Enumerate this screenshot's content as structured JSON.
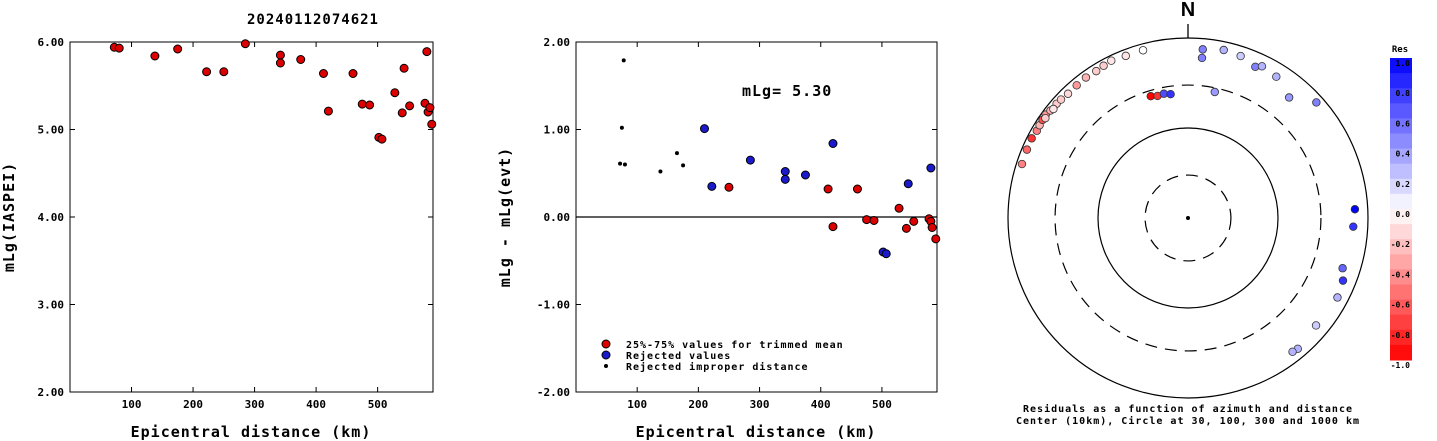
{
  "title": "20240112074621",
  "chart_data": [
    {
      "type": "scatter",
      "xlabel": "Epicentral distance (km)",
      "ylabel": "mLg(IASPEI)",
      "xlim": [
        0,
        590
      ],
      "ylim": [
        2.0,
        6.0
      ],
      "xticks": [
        "100",
        "200",
        "300",
        "400",
        "500"
      ],
      "yticks": [
        "2.00",
        "3.00",
        "4.00",
        "5.00",
        "6.00"
      ],
      "points": [
        {
          "x": 72,
          "y": 5.94
        },
        {
          "x": 80,
          "y": 5.93
        },
        {
          "x": 138,
          "y": 5.84
        },
        {
          "x": 175,
          "y": 5.92
        },
        {
          "x": 222,
          "y": 5.66
        },
        {
          "x": 250,
          "y": 5.66
        },
        {
          "x": 285,
          "y": 5.98
        },
        {
          "x": 342,
          "y": 5.85
        },
        {
          "x": 342,
          "y": 5.76
        },
        {
          "x": 375,
          "y": 5.8
        },
        {
          "x": 412,
          "y": 5.64
        },
        {
          "x": 420,
          "y": 5.21
        },
        {
          "x": 460,
          "y": 5.64
        },
        {
          "x": 475,
          "y": 5.29
        },
        {
          "x": 487,
          "y": 5.28
        },
        {
          "x": 502,
          "y": 4.91
        },
        {
          "x": 507,
          "y": 4.89
        },
        {
          "x": 528,
          "y": 5.42
        },
        {
          "x": 540,
          "y": 5.19
        },
        {
          "x": 543,
          "y": 5.7
        },
        {
          "x": 552,
          "y": 5.27
        },
        {
          "x": 577,
          "y": 5.3
        },
        {
          "x": 580,
          "y": 5.89
        },
        {
          "x": 582,
          "y": 5.2
        },
        {
          "x": 585,
          "y": 5.25
        },
        {
          "x": 588,
          "y": 5.06
        }
      ]
    },
    {
      "type": "scatter",
      "xlabel": "Epicentral distance (km)",
      "ylabel": "mLg - mLg(evt)",
      "xlim": [
        0,
        590
      ],
      "ylim": [
        -2.0,
        2.0
      ],
      "xticks": [
        "100",
        "200",
        "300",
        "400",
        "500"
      ],
      "yticks": [
        "-2.00",
        "-1.00",
        "0.00",
        "1.00",
        "2.00"
      ],
      "annotation": "mLg= 5.30",
      "legend": {
        "placement": "bottom-left",
        "entries": [
          {
            "label": "25%-75% values for trimmed mean",
            "color": "#dd0000",
            "marker": "circle"
          },
          {
            "label": "Rejected values",
            "color": "#1a1acc",
            "marker": "circle"
          },
          {
            "label": "Rejected improper distance",
            "color": "#000000",
            "marker": "dot"
          }
        ]
      },
      "series": [
        {
          "category": "trimmed",
          "points": [
            {
              "x": 250,
              "y": 0.34
            },
            {
              "x": 412,
              "y": 0.32
            },
            {
              "x": 420,
              "y": -0.11
            },
            {
              "x": 460,
              "y": 0.32
            },
            {
              "x": 475,
              "y": -0.03
            },
            {
              "x": 487,
              "y": -0.04
            },
            {
              "x": 528,
              "y": 0.1
            },
            {
              "x": 540,
              "y": -0.13
            },
            {
              "x": 552,
              "y": -0.05
            },
            {
              "x": 577,
              "y": -0.02
            },
            {
              "x": 580,
              "y": -0.05
            },
            {
              "x": 582,
              "y": -0.12
            },
            {
              "x": 588,
              "y": -0.25
            }
          ]
        },
        {
          "category": "rejected",
          "points": [
            {
              "x": 210,
              "y": 1.01
            },
            {
              "x": 222,
              "y": 0.35
            },
            {
              "x": 285,
              "y": 0.65
            },
            {
              "x": 342,
              "y": 0.52
            },
            {
              "x": 342,
              "y": 0.43
            },
            {
              "x": 375,
              "y": 0.48
            },
            {
              "x": 420,
              "y": 0.84
            },
            {
              "x": 502,
              "y": -0.4
            },
            {
              "x": 507,
              "y": -0.42
            },
            {
              "x": 543,
              "y": 0.38
            },
            {
              "x": 580,
              "y": 0.56
            }
          ]
        },
        {
          "category": "improper",
          "points": [
            {
              "x": 72,
              "y": 0.61
            },
            {
              "x": 75,
              "y": 1.02
            },
            {
              "x": 78,
              "y": 1.79
            },
            {
              "x": 80,
              "y": 0.6
            },
            {
              "x": 138,
              "y": 0.52
            },
            {
              "x": 165,
              "y": 0.73
            },
            {
              "x": 175,
              "y": 0.59
            }
          ]
        }
      ]
    },
    {
      "type": "polar-scatter",
      "north_label": "N",
      "caption_lines": [
        "Residuals as a function of azimuth and distance",
        "Center (10km), Circle at 30, 100, 300 and 1000 km"
      ],
      "rings_km": [
        30,
        100,
        300,
        1000
      ],
      "ring_styles": [
        "dashed",
        "solid",
        "dashed",
        "solid"
      ],
      "colorbar": {
        "title": "Res",
        "min": -1.0,
        "max": 1.0,
        "ticks": [
          "1.0",
          "0.8",
          "0.6",
          "0.4",
          "0.2",
          "0.0",
          "-0.2",
          "-0.4",
          "-0.6",
          "-0.8",
          "-1.0"
        ],
        "positive_color": "#0000ff",
        "negative_color": "#ff0000"
      },
      "stations": [
        {
          "az": 288,
          "dist": 870,
          "res": -0.5
        },
        {
          "az": 293,
          "dist": 880,
          "res": -0.6
        },
        {
          "az": 297,
          "dist": 890,
          "res": -0.8
        },
        {
          "az": 300,
          "dist": 870,
          "res": -0.5
        },
        {
          "az": 302,
          "dist": 880,
          "res": -0.3
        },
        {
          "az": 304,
          "dist": 890,
          "res": -0.7
        },
        {
          "az": 306,
          "dist": 900,
          "res": -0.4
        },
        {
          "az": 305,
          "dist": 860,
          "res": -0.2
        },
        {
          "az": 308,
          "dist": 870,
          "res": -0.3
        },
        {
          "az": 311,
          "dist": 860,
          "res": -0.2
        },
        {
          "az": 309,
          "dist": 840,
          "res": -0.1
        },
        {
          "az": 313,
          "dist": 850,
          "res": -0.2
        },
        {
          "az": 316,
          "dist": 830,
          "res": -0.15
        },
        {
          "az": 320,
          "dist": 840,
          "res": -0.4
        },
        {
          "az": 324,
          "dist": 850,
          "res": -0.3
        },
        {
          "az": 328,
          "dist": 840,
          "res": -0.2
        },
        {
          "az": 331,
          "dist": 860,
          "res": -0.2
        },
        {
          "az": 334,
          "dist": 880,
          "res": -0.1
        },
        {
          "az": 339,
          "dist": 850,
          "res": -0.1
        },
        {
          "az": 345,
          "dist": 850,
          "res": 0.0
        },
        {
          "az": 343,
          "dist": 260,
          "res": -1.0
        },
        {
          "az": 346,
          "dist": 250,
          "res": -0.8
        },
        {
          "az": 349,
          "dist": 255,
          "res": 0.7
        },
        {
          "az": 352,
          "dist": 245,
          "res": 0.8
        },
        {
          "az": 5,
          "dist": 760,
          "res": 0.5
        },
        {
          "az": 12,
          "dist": 810,
          "res": 0.3
        },
        {
          "az": 18,
          "dist": 780,
          "res": 0.2
        },
        {
          "az": 24,
          "dist": 690,
          "res": 0.5
        },
        {
          "az": 26,
          "dist": 750,
          "res": 0.3
        },
        {
          "az": 32,
          "dist": 710,
          "res": 0.3
        },
        {
          "az": 40,
          "dist": 560,
          "res": 0.4
        },
        {
          "az": 48,
          "dist": 830,
          "res": 0.5
        },
        {
          "az": 5,
          "dist": 610,
          "res": 0.5
        },
        {
          "az": 12,
          "dist": 270,
          "res": 0.4
        },
        {
          "az": 87,
          "dist": 720,
          "res": 1.0
        },
        {
          "az": 93,
          "dist": 690,
          "res": 0.8
        },
        {
          "az": 108,
          "dist": 640,
          "res": 0.6
        },
        {
          "az": 112,
          "dist": 720,
          "res": 0.8
        },
        {
          "az": 118,
          "dist": 760,
          "res": 0.3
        },
        {
          "az": 130,
          "dist": 720,
          "res": 0.2
        },
        {
          "az": 140,
          "dist": 790,
          "res": 0.3
        },
        {
          "az": 142,
          "dist": 770,
          "res": 0.3
        }
      ]
    }
  ]
}
